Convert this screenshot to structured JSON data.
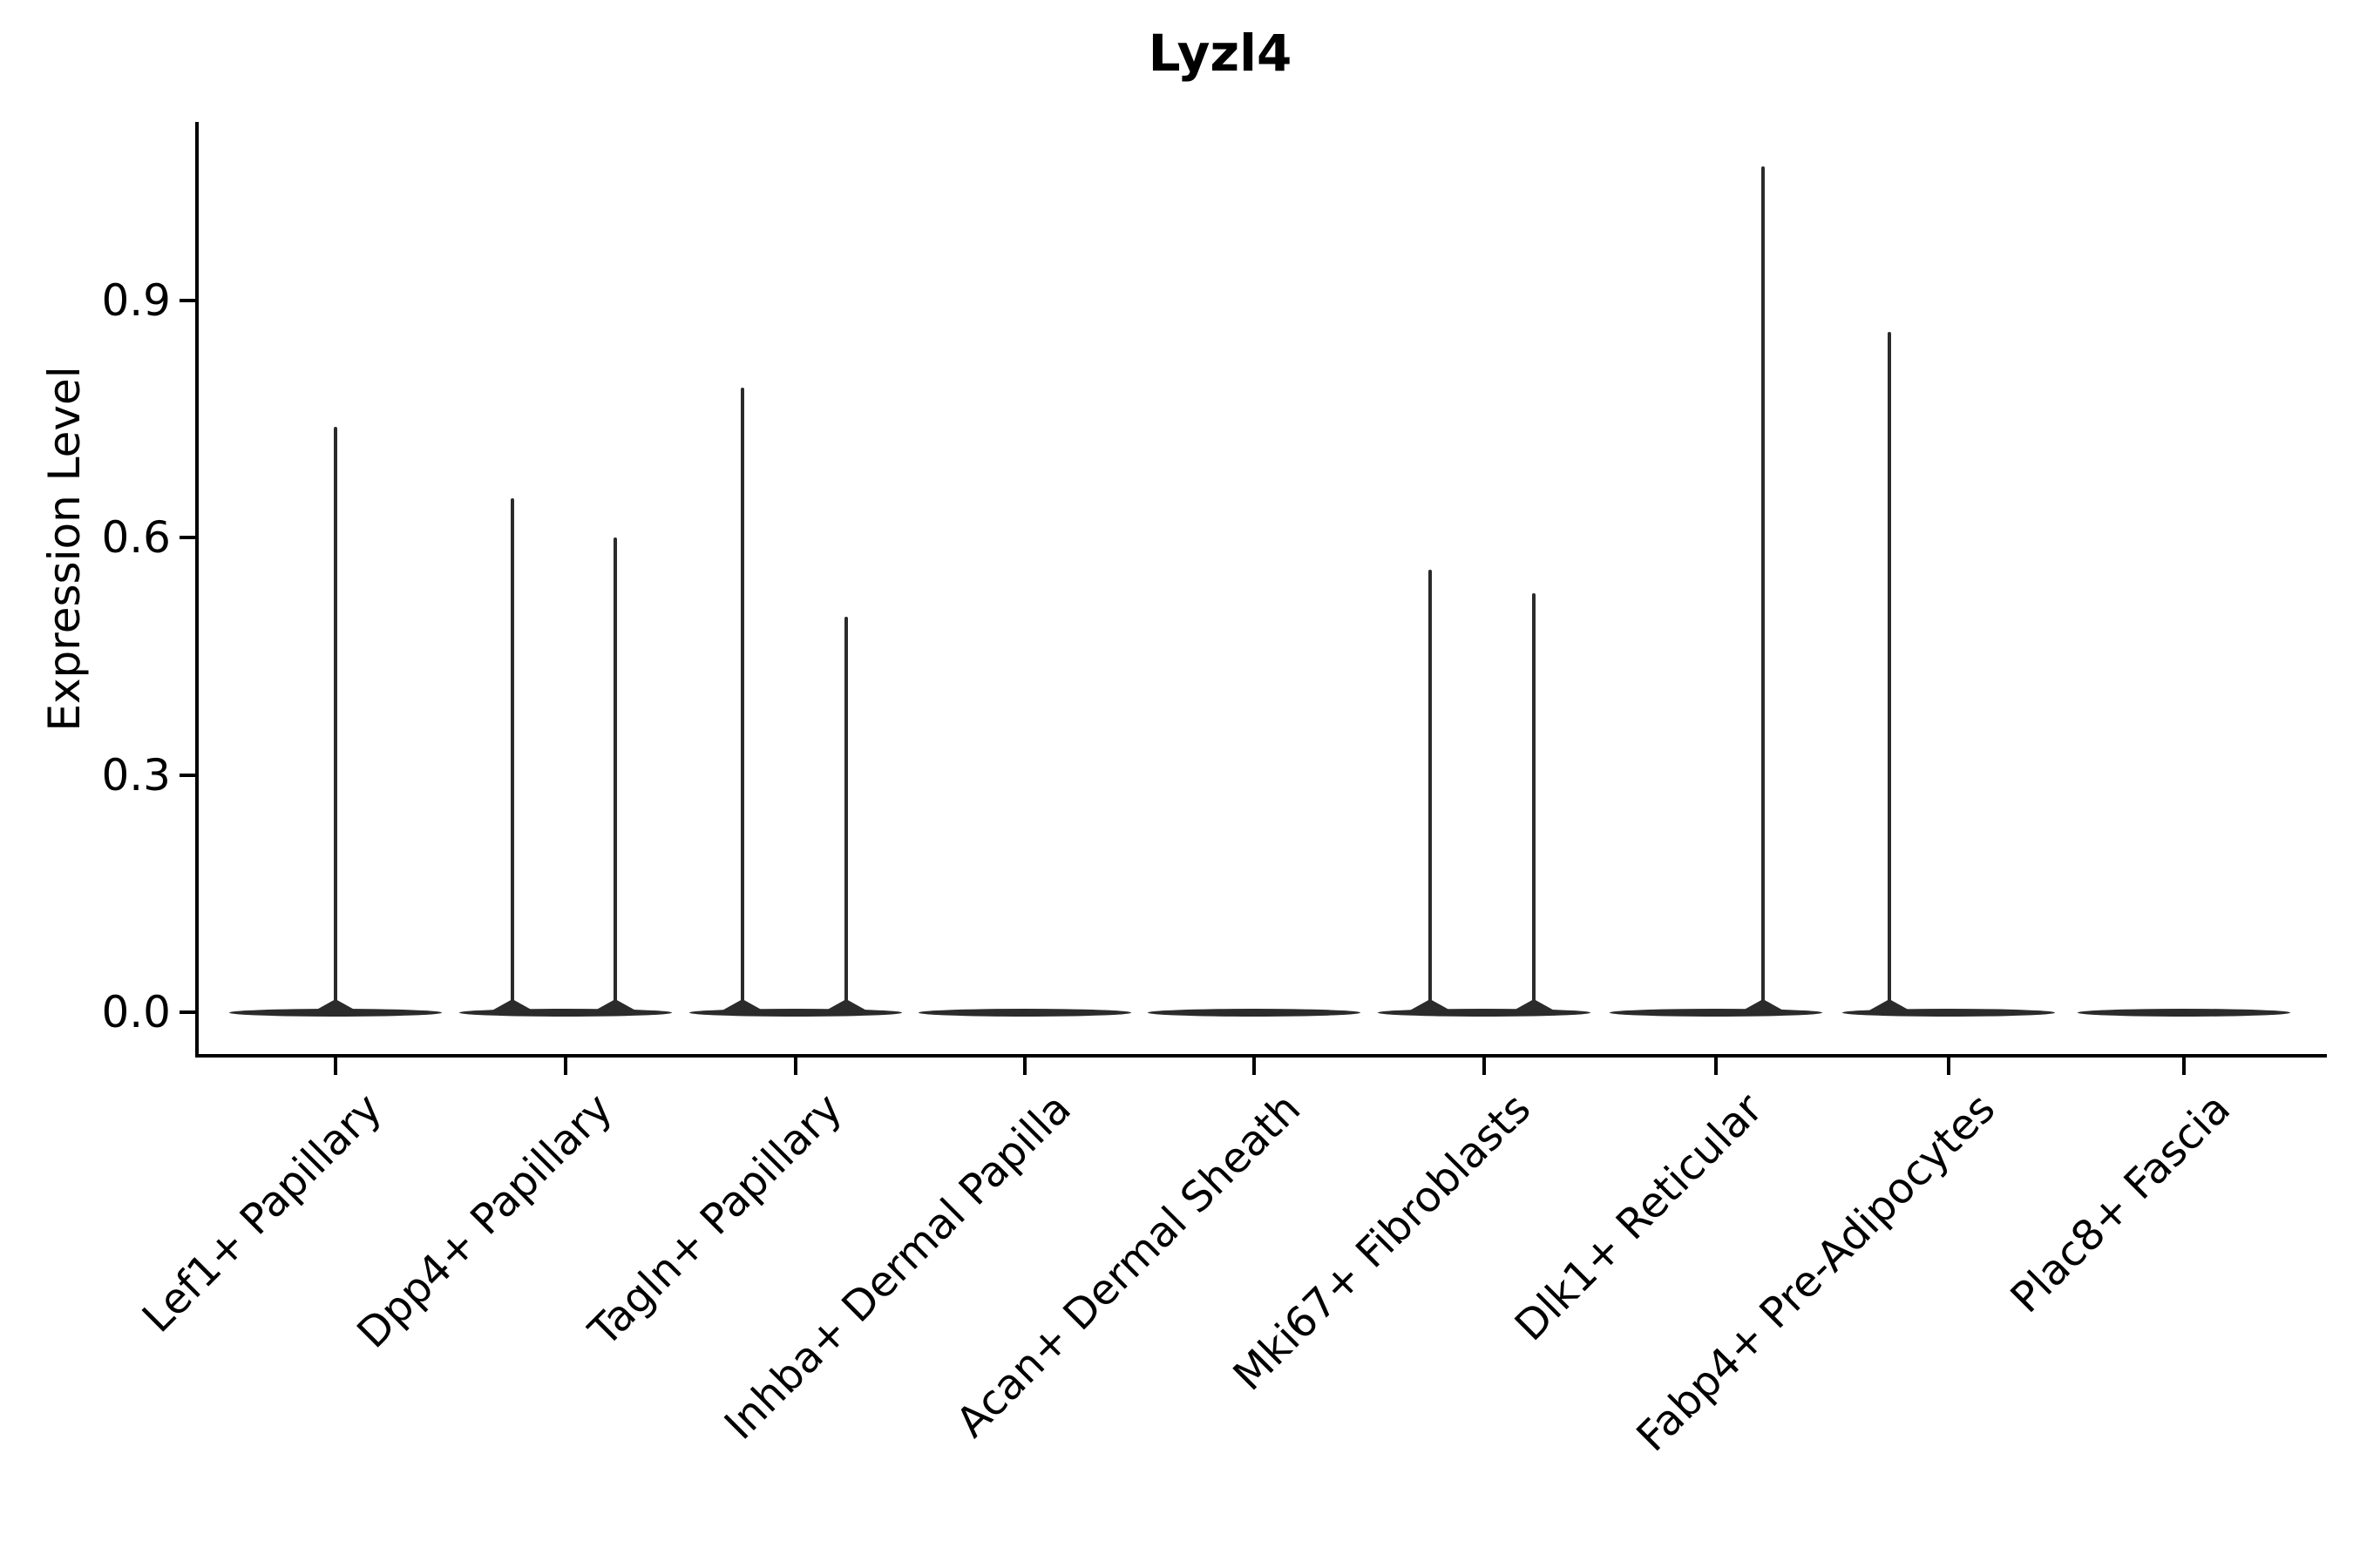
{
  "chart_data": {
    "type": "violin",
    "title": "Lyzl4",
    "ylabel": "Expression Level",
    "xlabel": "",
    "yticks": [
      "0.0",
      "0.3",
      "0.6",
      "0.9"
    ],
    "ylim": [
      -0.06,
      1.13
    ],
    "grid": false,
    "legend": null,
    "categories": [
      {
        "label": "Lef1+ Papillary",
        "spikes": [
          {
            "value": 0.74,
            "dx": 0
          }
        ]
      },
      {
        "label": "Dpp4+ Papillary",
        "spikes": [
          {
            "value": 0.65,
            "dx": -61
          },
          {
            "value": 0.6,
            "dx": 57
          }
        ]
      },
      {
        "label": "Tagln+ Papillary",
        "spikes": [
          {
            "value": 0.79,
            "dx": -61
          },
          {
            "value": 0.5,
            "dx": 58
          }
        ]
      },
      {
        "label": "Inhba+ Dermal Papilla",
        "spikes": []
      },
      {
        "label": "Acan+ Dermal Sheath",
        "spikes": []
      },
      {
        "label": "Mki67+ Fibroblasts",
        "spikes": [
          {
            "value": 0.56,
            "dx": -62
          },
          {
            "value": 0.53,
            "dx": 57
          }
        ]
      },
      {
        "label": "Dlk1+ Reticular",
        "spikes": [
          {
            "value": 1.07,
            "dx": 54
          }
        ]
      },
      {
        "label": "Fabp4+ Pre-Adipocytes",
        "spikes": [
          {
            "value": 0.86,
            "dx": -68
          }
        ]
      },
      {
        "label": "Plac8+ Fascia",
        "spikes": []
      }
    ],
    "colors": {
      "axis": "#000000",
      "text": "#000000",
      "violin": "#2b2b2b"
    }
  }
}
